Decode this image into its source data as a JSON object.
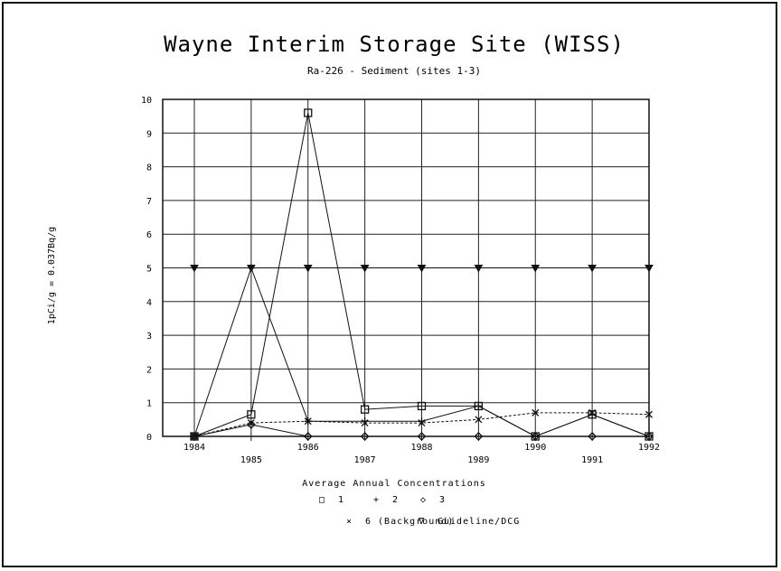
{
  "chart_data": {
    "type": "line",
    "title": "Wayne Interim Storage Site (WISS)",
    "subtitle": "Ra-226 - Sediment (sites 1-3)",
    "ylabel": "1pCi/g = 0.037Bq/g",
    "xlabel": "",
    "legend_title": "Average Annual Concentrations",
    "x": [
      "1984",
      "1985",
      "1986",
      "1987",
      "1988",
      "1989",
      "1990",
      "1991",
      "1992"
    ],
    "ylim": [
      0,
      10
    ],
    "yticks": [
      "0",
      "1",
      "2",
      "3",
      "4",
      "5",
      "6",
      "7",
      "8",
      "9",
      "10"
    ],
    "grid": true,
    "legend_position": "bottom",
    "series": [
      {
        "name": "1",
        "marker": "square",
        "values": [
          0,
          0.65,
          9.6,
          0.8,
          0.9,
          0.9,
          0,
          0.65,
          0
        ]
      },
      {
        "name": "2",
        "marker": "plus",
        "values": [
          0,
          5.0,
          0.45,
          0.45,
          0.45,
          0.9,
          0,
          0.65,
          0
        ]
      },
      {
        "name": "3",
        "marker": "diamond",
        "values": [
          0,
          0.35,
          0,
          0,
          0,
          0,
          0,
          0,
          0
        ]
      },
      {
        "name": "6 (Background)",
        "marker": "x",
        "values": [
          0,
          0.4,
          0.45,
          0.4,
          0.4,
          0.5,
          0.7,
          0.7,
          0.65
        ]
      },
      {
        "name": "Guideline/DCG",
        "marker": "triangle",
        "values": [
          5,
          5,
          5,
          5,
          5,
          5,
          5,
          5,
          5
        ]
      }
    ],
    "legend_rows": [
      [
        {
          "symbol": "□",
          "label": "1"
        },
        {
          "symbol": "+",
          "label": "2"
        },
        {
          "symbol": "◇",
          "label": "3"
        }
      ],
      [
        {
          "symbol": "×",
          "label": "6 (Background)"
        },
        {
          "symbol": "∇",
          "label": "Guideline/DCG"
        }
      ]
    ]
  }
}
